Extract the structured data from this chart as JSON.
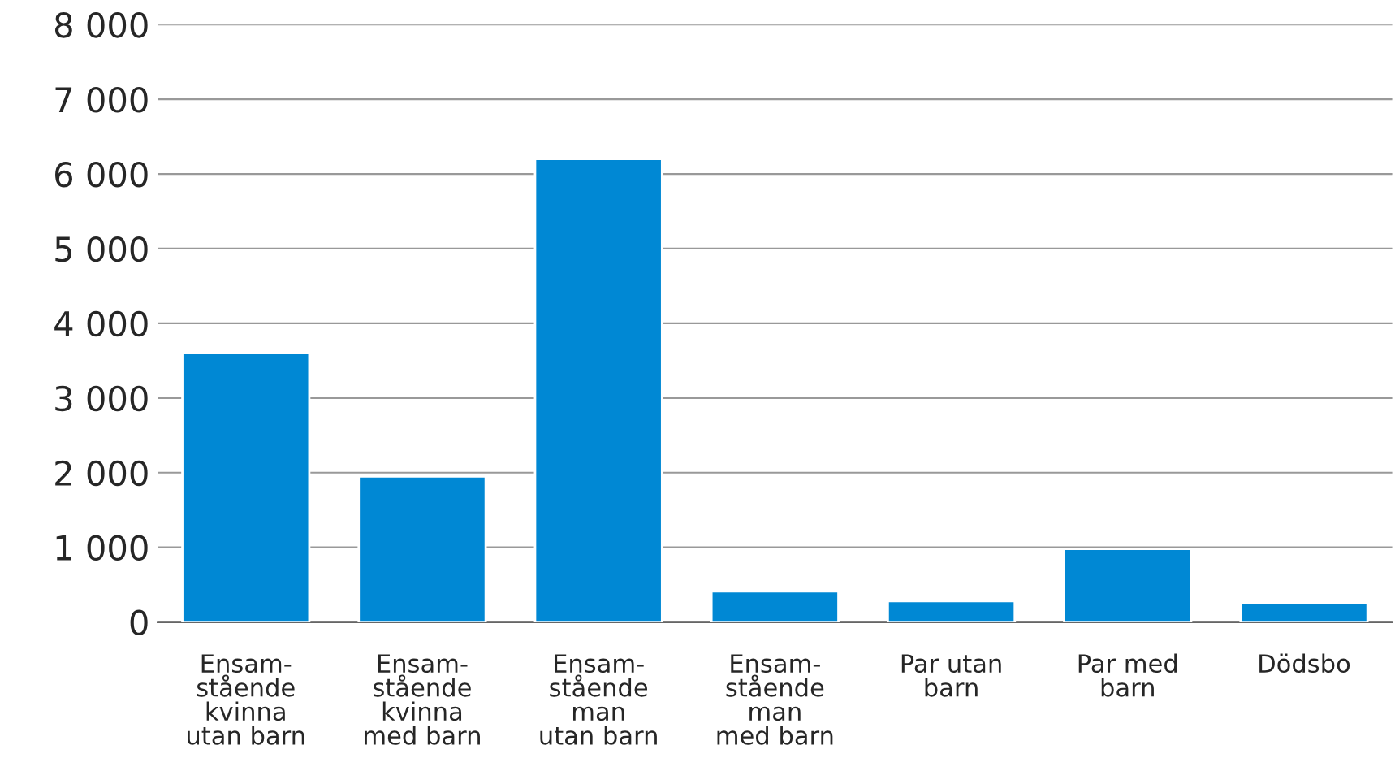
{
  "chart_data": {
    "type": "bar",
    "categories": [
      "Ensam-\nstående\nkvinna\nutan barn",
      "Ensam-\nstående\nkvinna\nmed barn",
      "Ensam-\nstående\nman\nutan barn",
      "Ensam-\nstående\nman\nmed barn",
      "Par utan\nbarn",
      "Par med\nbarn",
      "Dödsbo"
    ],
    "values": [
      3600,
      1950,
      6200,
      410,
      280,
      980,
      260
    ],
    "color": "#0088d4",
    "ylim": [
      0,
      8000
    ],
    "yticks": [
      {
        "value": 0,
        "label": "0"
      },
      {
        "value": 1000,
        "label": "1 000"
      },
      {
        "value": 2000,
        "label": "2 000"
      },
      {
        "value": 3000,
        "label": "3 000"
      },
      {
        "value": 4000,
        "label": "4 000"
      },
      {
        "value": 5000,
        "label": "5 000"
      },
      {
        "value": 6000,
        "label": "6 000"
      },
      {
        "value": 7000,
        "label": "7 000"
      },
      {
        "value": 8000,
        "label": "8 000"
      }
    ],
    "grid": "y"
  }
}
